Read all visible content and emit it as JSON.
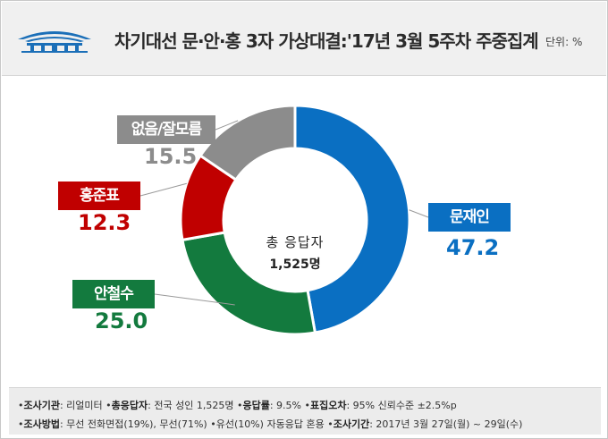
{
  "title": "차기대선 문·안·홍 3자 가상대결:'17년 3월 5주차 주중집계",
  "unit": "단위: %",
  "center": {
    "title": "총 응답자",
    "count": "1,525명"
  },
  "chart_data": {
    "type": "pie",
    "style": "donut",
    "start_angle": "12 o'clock, clockwise",
    "slices": [
      {
        "name": "문재인",
        "value": 47.2,
        "value_label": "47.2",
        "color": "#0a6fc2",
        "label_position": "right"
      },
      {
        "name": "안철수",
        "value": 25.0,
        "value_label": "25.0",
        "color": "#137a3e",
        "label_position": "lower-left"
      },
      {
        "name": "홍준표",
        "value": 12.3,
        "value_label": "12.3",
        "color": "#c00000",
        "label_position": "left"
      },
      {
        "name": "없음/잘모름",
        "value": 15.5,
        "value_label": "15.5",
        "color": "#8c8c8c",
        "label_position": "upper-left"
      }
    ]
  },
  "footer": {
    "line1": [
      {
        "key": "조사기관",
        "sep": ": ",
        "val": "리얼미터"
      },
      {
        "key": "총응답자",
        "sep": ": ",
        "val": "전국 성인 1,525명"
      },
      {
        "key": "응답률",
        "sep": ": ",
        "val": "9.5%"
      },
      {
        "key": "표집오차",
        "sep": ": ",
        "val": "95% 신뢰수준 ±2.5%p"
      }
    ],
    "line2": [
      {
        "key": "조사방법",
        "sep": ": ",
        "val": "무선 전화면접(19%), 무선(71%)"
      },
      {
        "key": "",
        "sep": "",
        "val": "유선(10%) 자동응답 혼용"
      },
      {
        "key": "조사기간",
        "sep": ": ",
        "val": "2017년 3월 27일(월) ~ 29일(수)"
      }
    ]
  }
}
